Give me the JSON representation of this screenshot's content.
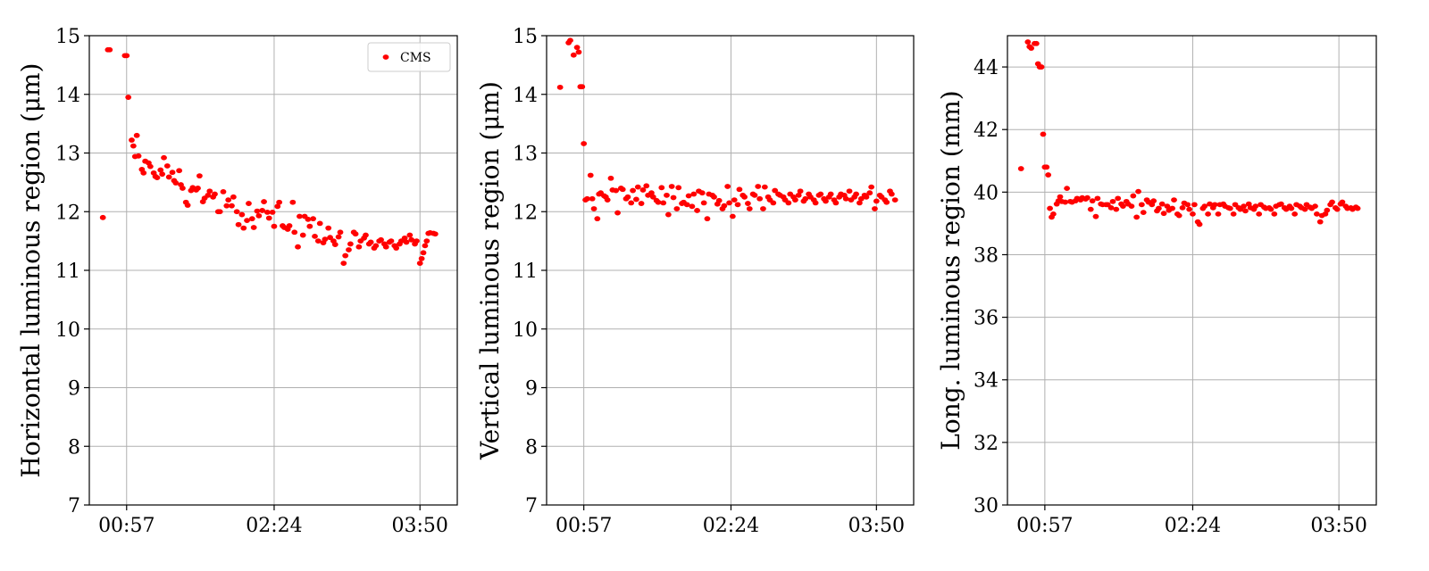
{
  "figure": {
    "legend": {
      "label": "CMS",
      "color": "#ff0000",
      "placement": "upper right of left panel"
    },
    "marker_color": "#ff0000",
    "grid": true
  },
  "chart_data": [
    {
      "type": "scatter",
      "ylabel": "Horizontal luminous region (μm)",
      "xlabel": "",
      "xtick_labels": [
        "00:57",
        "02:24",
        "03:50"
      ],
      "xticks_minutes": [
        57,
        144,
        230
      ],
      "xlim_minutes": [
        35,
        252
      ],
      "ylim": [
        7,
        15
      ],
      "yticks": [
        7,
        8,
        9,
        10,
        11,
        12,
        13,
        14,
        15
      ],
      "grid": true,
      "legend": true,
      "series": [
        {
          "name": "CMS",
          "color": "#ff0000",
          "x_minutes": [
            43,
            46,
            47,
            56,
            57,
            58,
            60,
            61,
            62,
            63,
            64,
            66,
            67,
            68,
            70,
            71,
            73,
            74,
            75,
            77,
            78,
            79,
            81,
            82,
            84,
            85,
            86,
            88,
            89,
            90,
            92,
            93,
            95,
            96,
            98,
            99,
            100,
            102,
            103,
            105,
            106,
            108,
            109,
            111,
            112,
            114,
            116,
            117,
            119,
            120,
            122,
            123,
            125,
            126,
            128,
            129,
            131,
            132,
            134,
            135,
            137,
            138,
            140,
            141,
            143,
            144,
            146,
            147,
            149,
            150,
            152,
            153,
            155,
            156,
            158,
            159,
            161,
            162,
            164,
            165,
            167,
            168,
            170,
            171,
            173,
            174,
            176,
            177,
            179,
            180,
            182,
            183,
            185,
            186,
            188,
            189,
            191,
            192,
            194,
            195,
            197,
            198,
            200,
            201,
            203,
            204,
            206,
            207,
            209,
            210,
            212,
            213,
            215,
            216,
            218,
            219,
            221,
            222,
            224,
            225,
            227,
            228,
            230,
            231,
            232,
            233,
            234,
            235,
            236,
            238,
            239
          ],
          "y": [
            11.9,
            14.76,
            14.76,
            14.66,
            14.66,
            13.95,
            13.22,
            13.12,
            12.94,
            13.3,
            12.95,
            12.72,
            12.66,
            12.86,
            12.83,
            12.77,
            12.66,
            12.6,
            12.58,
            12.71,
            12.64,
            12.92,
            12.78,
            12.59,
            12.67,
            12.53,
            12.49,
            12.7,
            12.46,
            12.4,
            12.16,
            12.11,
            12.36,
            12.41,
            12.37,
            12.4,
            12.61,
            12.17,
            12.23,
            12.28,
            12.35,
            12.25,
            12.3,
            12.0,
            12.0,
            12.34,
            12.1,
            12.2,
            12.1,
            12.25,
            12.0,
            11.78,
            11.95,
            11.72,
            11.85,
            12.14,
            11.88,
            11.73,
            12.01,
            11.93,
            12.02,
            12.17,
            11.99,
            11.89,
            11.99,
            11.75,
            12.09,
            12.16,
            11.76,
            11.73,
            11.7,
            11.76,
            12.16,
            11.65,
            11.4,
            11.92,
            11.6,
            11.92,
            11.87,
            11.75,
            11.88,
            11.58,
            11.5,
            11.8,
            11.47,
            11.53,
            11.72,
            11.56,
            11.5,
            11.44,
            11.57,
            11.65,
            11.12,
            11.25,
            11.35,
            11.45,
            11.65,
            11.62,
            11.4,
            11.5,
            11.55,
            11.6,
            11.45,
            11.48,
            11.38,
            11.42,
            11.5,
            11.52,
            11.45,
            11.4,
            11.48,
            11.5,
            11.42,
            11.38,
            11.45,
            11.5,
            11.55,
            11.48,
            11.6,
            11.52,
            11.45,
            11.5,
            11.12,
            11.2,
            11.3,
            11.42,
            11.5,
            11.63,
            11.64,
            11.63,
            11.62
          ]
        }
      ]
    },
    {
      "type": "scatter",
      "ylabel": "Vertical luminous region (μm)",
      "xlabel": "",
      "xtick_labels": [
        "00:57",
        "02:24",
        "03:50"
      ],
      "xticks_minutes": [
        57,
        144,
        230
      ],
      "xlim_minutes": [
        35,
        252
      ],
      "ylim": [
        7,
        15
      ],
      "yticks": [
        7,
        8,
        9,
        10,
        11,
        12,
        13,
        14,
        15
      ],
      "grid": true,
      "legend": false,
      "series": [
        {
          "name": "CMS",
          "color": "#ff0000",
          "x_minutes": [
            43,
            48,
            49,
            51,
            53,
            54,
            55,
            56,
            57,
            58,
            59,
            61,
            62,
            63,
            65,
            66,
            67,
            69,
            70,
            71,
            73,
            74,
            76,
            77,
            79,
            80,
            82,
            83,
            85,
            86,
            88,
            89,
            91,
            92,
            94,
            95,
            97,
            98,
            100,
            101,
            103,
            104,
            106,
            107,
            109,
            110,
            112,
            113,
            115,
            116,
            118,
            119,
            121,
            122,
            124,
            125,
            127,
            128,
            130,
            131,
            133,
            134,
            136,
            137,
            139,
            140,
            142,
            143,
            145,
            146,
            148,
            149,
            151,
            152,
            154,
            155,
            157,
            158,
            160,
            161,
            163,
            164,
            166,
            167,
            169,
            170,
            172,
            173,
            175,
            176,
            178,
            179,
            181,
            182,
            184,
            185,
            187,
            188,
            190,
            191,
            193,
            194,
            196,
            197,
            199,
            200,
            202,
            203,
            205,
            206,
            208,
            209,
            211,
            212,
            214,
            215,
            217,
            218,
            220,
            221,
            223,
            224,
            226,
            227,
            229,
            230,
            232,
            233,
            235,
            236,
            238,
            239,
            241
          ],
          "y": [
            14.12,
            14.88,
            14.92,
            14.67,
            14.8,
            14.72,
            14.13,
            14.13,
            13.16,
            12.2,
            12.22,
            12.62,
            12.22,
            12.05,
            11.88,
            12.3,
            12.32,
            12.27,
            12.25,
            12.2,
            12.57,
            12.37,
            12.36,
            11.98,
            12.4,
            12.38,
            12.22,
            12.25,
            12.15,
            12.36,
            12.21,
            12.42,
            12.14,
            12.37,
            12.44,
            12.28,
            12.32,
            12.25,
            12.19,
            12.16,
            12.41,
            12.15,
            12.28,
            11.95,
            12.43,
            12.24,
            12.05,
            12.41,
            12.14,
            12.16,
            12.12,
            12.27,
            12.09,
            12.3,
            12.02,
            12.35,
            12.32,
            12.15,
            11.88,
            12.3,
            12.28,
            12.25,
            12.13,
            12.19,
            12.05,
            12.1,
            12.43,
            12.15,
            11.92,
            12.2,
            12.12,
            12.38,
            12.28,
            12.25,
            12.14,
            12.05,
            12.3,
            12.28,
            12.43,
            12.22,
            12.05,
            12.42,
            12.25,
            12.2,
            12.15,
            12.36,
            12.3,
            12.28,
            12.25,
            12.2,
            12.15,
            12.3,
            12.25,
            12.2,
            12.28,
            12.35,
            12.18,
            12.22,
            12.3,
            12.25,
            12.2,
            12.15,
            12.28,
            12.3,
            12.22,
            12.18,
            12.25,
            12.3,
            12.2,
            12.15,
            12.25,
            12.3,
            12.28,
            12.22,
            12.35,
            12.2,
            12.25,
            12.3,
            12.15,
            12.22,
            12.28,
            12.25,
            12.32,
            12.42,
            12.05,
            12.18,
            12.28,
            12.25,
            12.2,
            12.16,
            12.35,
            12.3,
            12.2
          ]
        }
      ]
    },
    {
      "type": "scatter",
      "ylabel": "Long. luminous region (mm)",
      "xlabel": "",
      "xtick_labels": [
        "00:57",
        "02:24",
        "03:50"
      ],
      "xticks_minutes": [
        57,
        144,
        230
      ],
      "xlim_minutes": [
        35,
        252
      ],
      "ylim": [
        30,
        45
      ],
      "yticks": [
        30,
        32,
        34,
        36,
        38,
        40,
        42,
        44
      ],
      "grid": true,
      "legend": false,
      "series": [
        {
          "name": "CMS",
          "color": "#ff0000",
          "x_minutes": [
            43,
            47,
            48,
            49,
            51,
            52,
            53,
            54,
            55,
            56,
            57,
            58,
            59,
            60,
            61,
            62,
            64,
            65,
            66,
            67,
            69,
            70,
            72,
            73,
            75,
            76,
            78,
            79,
            81,
            82,
            84,
            85,
            87,
            88,
            90,
            91,
            93,
            94,
            96,
            97,
            99,
            100,
            102,
            103,
            105,
            106,
            108,
            109,
            111,
            112,
            114,
            115,
            117,
            118,
            120,
            121,
            123,
            124,
            126,
            127,
            129,
            130,
            132,
            133,
            135,
            136,
            138,
            139,
            141,
            142,
            144,
            145,
            147,
            148,
            150,
            151,
            153,
            154,
            156,
            157,
            159,
            160,
            162,
            163,
            165,
            166,
            168,
            169,
            171,
            172,
            174,
            175,
            177,
            178,
            180,
            181,
            183,
            184,
            186,
            187,
            189,
            190,
            192,
            193,
            195,
            196,
            198,
            199,
            201,
            202,
            204,
            205,
            207,
            208,
            210,
            211,
            213,
            214,
            216,
            217,
            219,
            220,
            222,
            223,
            225,
            226,
            228,
            229,
            231,
            232,
            234,
            235,
            237,
            238,
            240,
            241
          ],
          "y": [
            40.75,
            44.8,
            44.65,
            44.6,
            44.75,
            44.75,
            44.1,
            44.0,
            44.0,
            41.85,
            40.8,
            40.8,
            40.55,
            39.48,
            39.2,
            39.3,
            39.62,
            39.72,
            39.85,
            39.7,
            39.68,
            40.12,
            39.7,
            39.68,
            39.72,
            39.8,
            39.75,
            39.82,
            39.78,
            39.82,
            39.45,
            39.72,
            39.22,
            39.8,
            39.62,
            39.6,
            39.6,
            39.6,
            39.5,
            39.7,
            39.45,
            39.8,
            39.62,
            39.55,
            39.7,
            39.62,
            39.55,
            39.88,
            39.2,
            40.02,
            39.6,
            39.35,
            39.75,
            39.68,
            39.6,
            39.72,
            39.4,
            39.48,
            39.62,
            39.32,
            39.55,
            39.42,
            39.48,
            39.75,
            39.3,
            39.25,
            39.5,
            39.65,
            39.6,
            39.45,
            39.3,
            39.6,
            39.05,
            38.97,
            39.48,
            39.55,
            39.3,
            39.62,
            39.5,
            39.6,
            39.3,
            39.6,
            39.62,
            39.55,
            39.5,
            39.48,
            39.3,
            39.6,
            39.5,
            39.45,
            39.55,
            39.4,
            39.62,
            39.5,
            39.45,
            39.55,
            39.3,
            39.6,
            39.52,
            39.48,
            39.5,
            39.45,
            39.3,
            39.55,
            39.6,
            39.62,
            39.5,
            39.45,
            39.55,
            39.48,
            39.3,
            39.6,
            39.55,
            39.5,
            39.45,
            39.6,
            39.52,
            39.48,
            39.55,
            39.3,
            39.05,
            39.25,
            39.3,
            39.42,
            39.6,
            39.68,
            39.5,
            39.45,
            39.62,
            39.68,
            39.55,
            39.48,
            39.5,
            39.45,
            39.52,
            39.48
          ]
        }
      ]
    }
  ]
}
